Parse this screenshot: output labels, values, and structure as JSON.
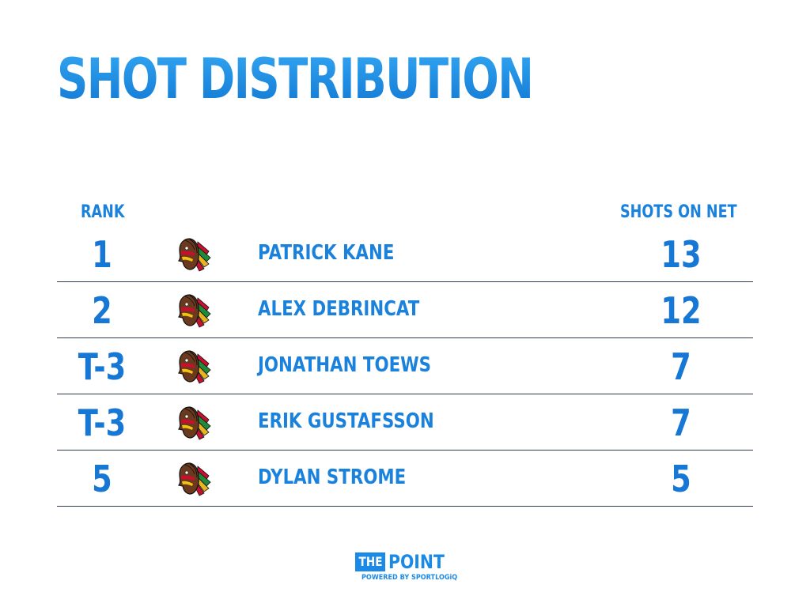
{
  "title": "SHOT DISTRIBUTION",
  "columns": {
    "rank": "RANK",
    "shots": "SHOTS ON NET"
  },
  "rows": [
    {
      "rank": "1",
      "team_logo": "blackhawks-logo-icon",
      "player": "PATRICK KANE",
      "shots": "13"
    },
    {
      "rank": "2",
      "team_logo": "blackhawks-logo-icon",
      "player": "ALEX DEBRINCAT",
      "shots": "12"
    },
    {
      "rank": "T-3",
      "team_logo": "blackhawks-logo-icon",
      "player": "JONATHAN TOEWS",
      "shots": "7"
    },
    {
      "rank": "T-3",
      "team_logo": "blackhawks-logo-icon",
      "player": "ERIK GUSTAFSSON",
      "shots": "7"
    },
    {
      "rank": "5",
      "team_logo": "blackhawks-logo-icon",
      "player": "DYLAN STROME",
      "shots": "5"
    }
  ],
  "brand": {
    "the": "THE",
    "point": "POINT",
    "powered_by": "POWERED BY SPORTLOGiQ"
  },
  "colors": {
    "accent": "#1a82dc",
    "divider": "#2d3b55",
    "background": "#ffffff"
  }
}
